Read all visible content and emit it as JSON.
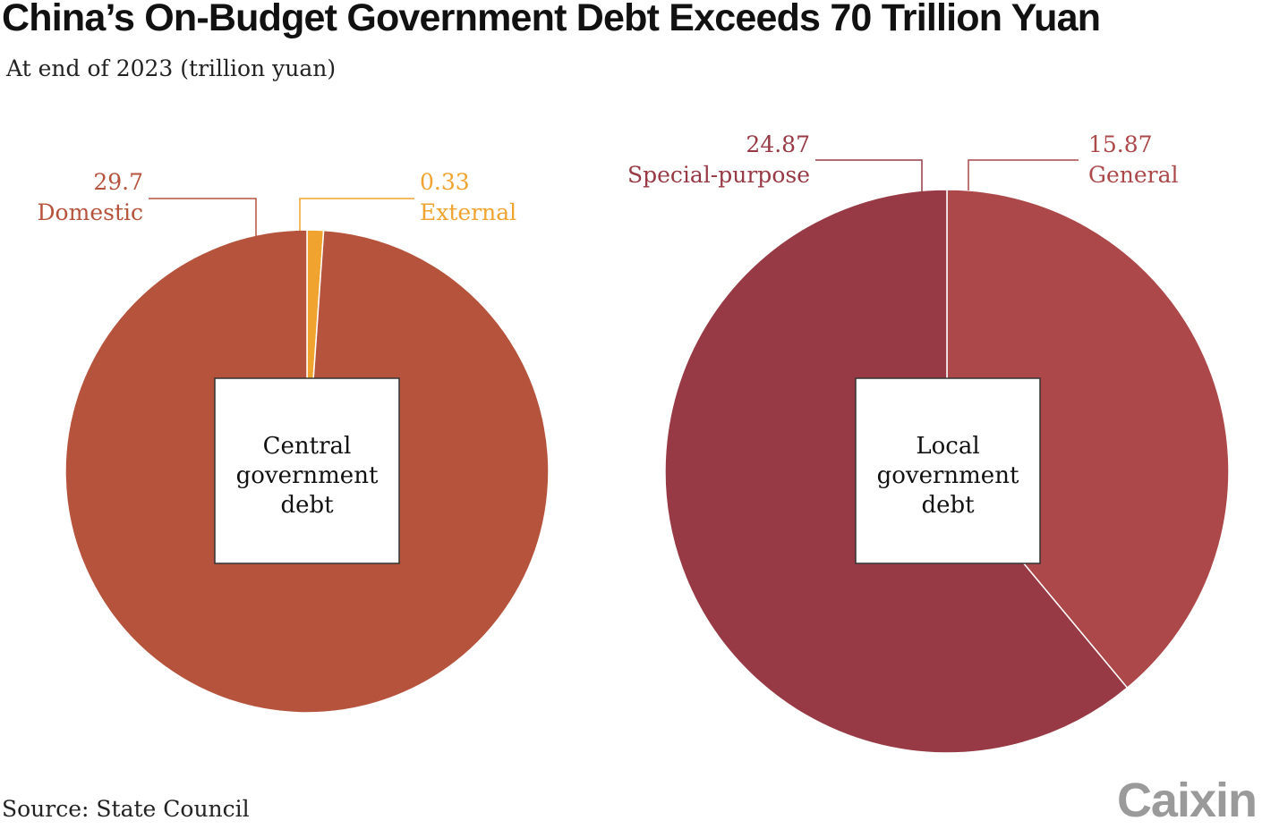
{
  "title": "China’s On-Budget Government Debt Exceeds 70 Trillion Yuan",
  "subtitle": "At end of 2023 (trillion yuan)",
  "source": "Source: State Council",
  "logo": "Caixin",
  "chart_data": [
    {
      "type": "pie",
      "center_label": [
        "Central",
        "government",
        "debt"
      ],
      "slices": [
        {
          "name": "Domestic",
          "value": 29.7,
          "value_label": "29.7",
          "color": "#b5533c"
        },
        {
          "name": "External",
          "value": 0.33,
          "value_label": "0.33",
          "color": "#f0a32e"
        }
      ]
    },
    {
      "type": "pie",
      "center_label": [
        "Local",
        "government",
        "debt"
      ],
      "slices": [
        {
          "name": "General",
          "value": 15.87,
          "value_label": "15.87",
          "color": "#ac4849"
        },
        {
          "name": "Special-purpose",
          "value": 24.87,
          "value_label": "24.87",
          "color": "#973a45"
        }
      ]
    }
  ]
}
